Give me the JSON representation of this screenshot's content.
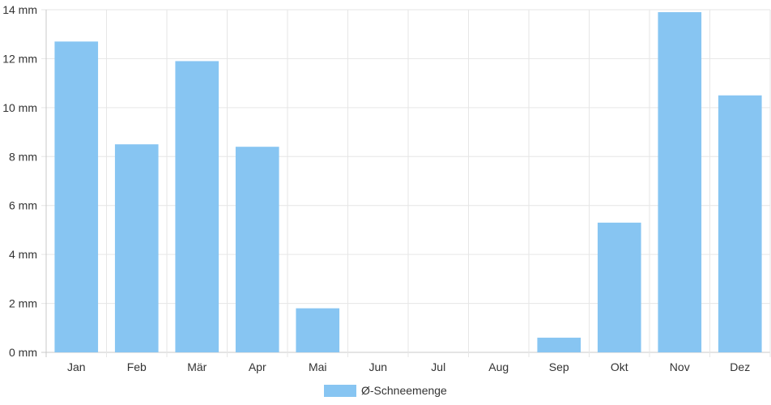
{
  "chart_data": {
    "type": "bar",
    "categories": [
      "Jan",
      "Feb",
      "Mär",
      "Apr",
      "Mai",
      "Jun",
      "Jul",
      "Aug",
      "Sep",
      "Okt",
      "Nov",
      "Dez"
    ],
    "series": [
      {
        "name": "Ø-Schneemenge",
        "values": [
          12.7,
          8.5,
          11.9,
          8.4,
          1.8,
          0,
          0,
          0,
          0.6,
          5.3,
          13.9,
          10.5
        ]
      }
    ],
    "y_ticks": [
      "0 mm",
      "2 mm",
      "4 mm",
      "6 mm",
      "8 mm",
      "10 mm",
      "12 mm",
      "14 mm"
    ],
    "ylim": [
      0,
      14
    ],
    "grid": true,
    "legend_position": "bottom",
    "bar_color": "#87c5f2",
    "title": "",
    "xlabel": "",
    "ylabel": ""
  }
}
